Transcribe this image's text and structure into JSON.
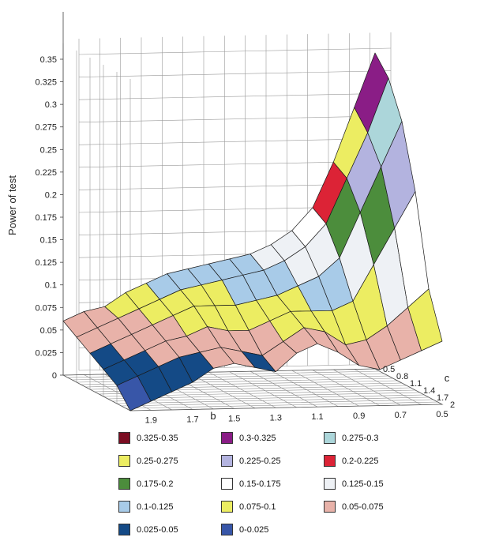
{
  "chart_data": {
    "type": "surface3d",
    "title": "",
    "zlabel": "Power of test",
    "xlabel": "b",
    "ylabel": "c",
    "x_ticks": [
      "1.9",
      "1.7",
      "1.5",
      "1.3",
      "1.1",
      "0.9",
      "0.7",
      "0.5"
    ],
    "y_ticks": [
      "0.5",
      "0.8",
      "1.1",
      "1.4",
      "1.7",
      "2"
    ],
    "z_ticks": [
      "0",
      "0.025",
      "0.05",
      "0.075",
      "0.1",
      "0.125",
      "0.15",
      "0.175",
      "0.2",
      "0.225",
      "0.25",
      "0.275",
      "0.3",
      "0.325",
      "0.35"
    ],
    "zlim": [
      0,
      0.35
    ],
    "b_values": [
      2.0,
      1.9,
      1.8,
      1.7,
      1.6,
      1.5,
      1.4,
      1.3,
      1.2,
      1.1,
      1.0,
      0.9,
      0.8,
      0.7,
      0.6,
      0.5
    ],
    "c_values": [
      0.5,
      0.8,
      1.1,
      1.4,
      1.7,
      2.0
    ],
    "z_values": [
      [
        0.06,
        0.05,
        0.04,
        0.03,
        0.02,
        0.0
      ],
      [
        0.07,
        0.06,
        0.05,
        0.04,
        0.03,
        0.01
      ],
      [
        0.075,
        0.07,
        0.06,
        0.05,
        0.04,
        0.02
      ],
      [
        0.09,
        0.08,
        0.07,
        0.06,
        0.05,
        0.03
      ],
      [
        0.1,
        0.09,
        0.08,
        0.065,
        0.055,
        0.045
      ],
      [
        0.11,
        0.1,
        0.09,
        0.075,
        0.06,
        0.05
      ],
      [
        0.115,
        0.105,
        0.09,
        0.07,
        0.055,
        0.045
      ],
      [
        0.12,
        0.11,
        0.09,
        0.07,
        0.05,
        0.04
      ],
      [
        0.125,
        0.115,
        0.095,
        0.08,
        0.065,
        0.06
      ],
      [
        0.13,
        0.12,
        0.1,
        0.09,
        0.08,
        0.07
      ],
      [
        0.14,
        0.13,
        0.11,
        0.09,
        0.075,
        0.06
      ],
      [
        0.155,
        0.145,
        0.12,
        0.09,
        0.06,
        0.045
      ],
      [
        0.18,
        0.17,
        0.14,
        0.1,
        0.065,
        0.04
      ],
      [
        0.23,
        0.22,
        0.19,
        0.14,
        0.08,
        0.05
      ],
      [
        0.29,
        0.27,
        0.24,
        0.18,
        0.1,
        0.06
      ],
      [
        0.35,
        0.33,
        0.29,
        0.22,
        0.12,
        0.07
      ]
    ],
    "bands": [
      {
        "range": "0.325-0.35",
        "lo": 0.325,
        "hi": 0.35,
        "color": "#7b0d22"
      },
      {
        "range": "0.3-0.325",
        "lo": 0.3,
        "hi": 0.325,
        "color": "#8a1d86"
      },
      {
        "range": "0.275-0.3",
        "lo": 0.275,
        "hi": 0.3,
        "color": "#acd6da"
      },
      {
        "range": "0.25-0.275",
        "lo": 0.25,
        "hi": 0.275,
        "color": "#eced62"
      },
      {
        "range": "0.225-0.25",
        "lo": 0.225,
        "hi": 0.25,
        "color": "#b3b3df"
      },
      {
        "range": "0.2-0.225",
        "lo": 0.2,
        "hi": 0.225,
        "color": "#dc2336"
      },
      {
        "range": "0.175-0.2",
        "lo": 0.175,
        "hi": 0.2,
        "color": "#4c8d3c"
      },
      {
        "range": "0.15-0.175",
        "lo": 0.15,
        "hi": 0.175,
        "color": "#ffffff"
      },
      {
        "range": "0.125-0.15",
        "lo": 0.125,
        "hi": 0.15,
        "color": "#eef1f5"
      },
      {
        "range": "0.1-0.125",
        "lo": 0.1,
        "hi": 0.125,
        "color": "#a8cbe8"
      },
      {
        "range": "0.075-0.1",
        "lo": 0.075,
        "hi": 0.1,
        "color": "#eced62"
      },
      {
        "range": "0.05-0.075",
        "lo": 0.05,
        "hi": 0.075,
        "color": "#e8b2a9"
      },
      {
        "range": "0.025-0.05",
        "lo": 0.025,
        "hi": 0.05,
        "color": "#144a86"
      },
      {
        "range": "0-0.025",
        "lo": 0.0,
        "hi": 0.025,
        "color": "#3856a8"
      }
    ]
  }
}
